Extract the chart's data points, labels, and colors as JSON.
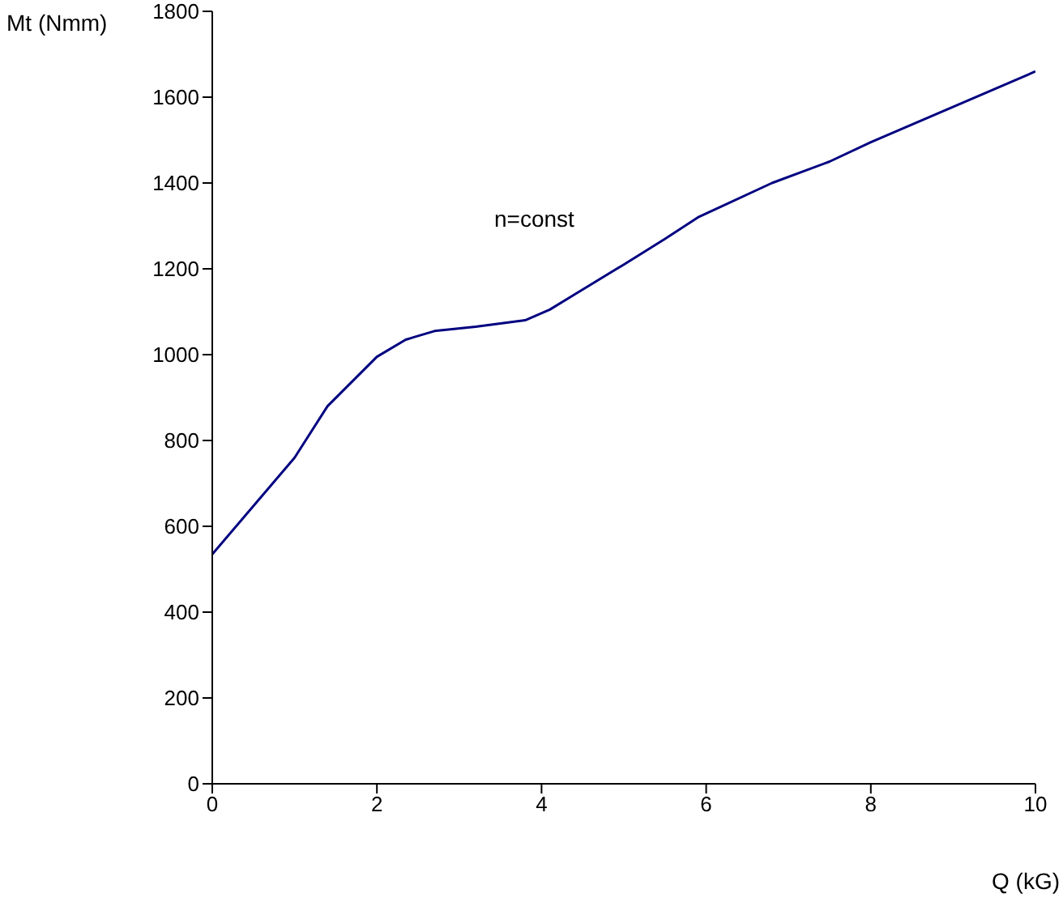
{
  "chart_data": {
    "type": "line",
    "xlabel": "Q (kG)",
    "ylabel": "Mt (Nmm)",
    "annotations": [
      "n=const"
    ],
    "x": [
      0,
      1,
      1.4,
      2,
      2.35,
      2.7,
      3.2,
      3.8,
      4.1,
      4.4,
      5,
      5.5,
      5.9,
      6.8,
      7.5,
      8,
      10
    ],
    "series": [
      {
        "color": "#000080",
        "values": [
          535,
          760,
          880,
          995,
          1035,
          1055,
          1065,
          1080,
          1105,
          1140,
          1210,
          1270,
          1320,
          1400,
          1450,
          1495,
          1660
        ]
      }
    ],
    "xlim": [
      0,
      10
    ],
    "xticks": [
      0,
      2,
      4,
      6,
      8,
      10
    ],
    "ylim": [
      0,
      1800
    ],
    "yticks": [
      0,
      200,
      400,
      600,
      800,
      1000,
      1200,
      1400,
      1600,
      1800
    ],
    "grid": false,
    "legend": false,
    "marker": "none",
    "line_style": "solid"
  }
}
